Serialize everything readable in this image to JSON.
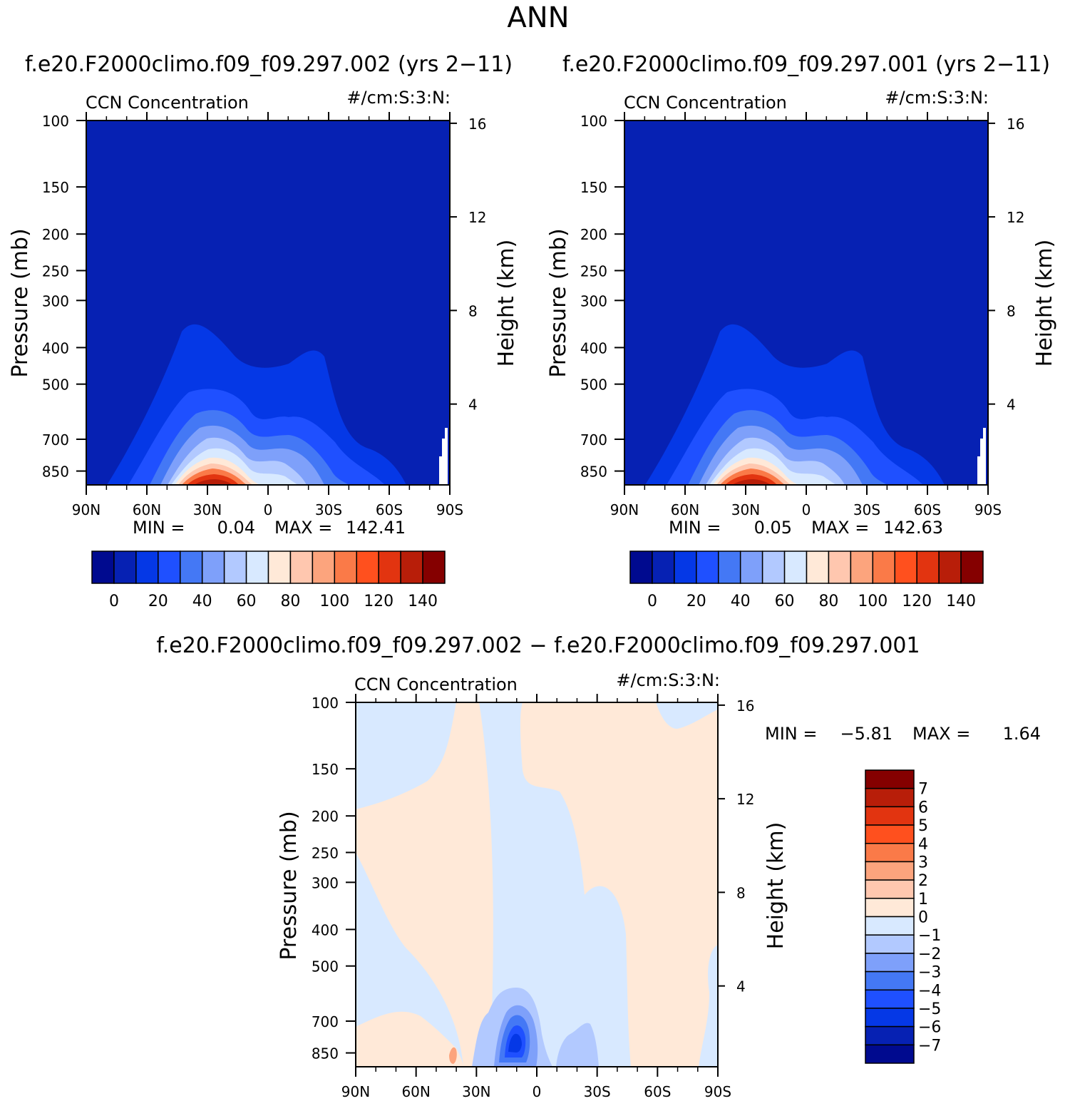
{
  "page": {
    "title": "ANN",
    "diff_title": "f.e20.F2000climo.f09_f09.297.002 − f.e20.F2000climo.f09_f09.297.001"
  },
  "chart_data": [
    {
      "type": "contour",
      "title": "f.e20.F2000climo.f09_f09.297.002 (yrs 2−11)",
      "left_label": "CCN Concentration",
      "right_label": "#/cm:S:3:N:",
      "ylabel": "Pressure (mb)",
      "ylabel_right": "Height (km)",
      "x_ticks": [
        "90N",
        "60N",
        "30N",
        "0",
        "30S",
        "60S",
        "90S"
      ],
      "y_ticks": [
        100,
        150,
        200,
        250,
        300,
        400,
        500,
        700,
        850
      ],
      "y_right_ticks": [
        16,
        12,
        8,
        4
      ],
      "min_label": "MIN =",
      "min_value": "0.04",
      "max_label": "MAX =",
      "max_value": "142.41",
      "ylim": [
        100,
        925
      ],
      "colorbar_ticks": [
        "0",
        "20",
        "40",
        "60",
        "80",
        "100",
        "120",
        "140"
      ],
      "colors": [
        "#000a8f",
        "#0621b3",
        "#0538e6",
        "#1f50ff",
        "#4478f5",
        "#7ea0fa",
        "#b2c9ff",
        "#d8e9ff",
        "#ffe9d8",
        "#ffc7af",
        "#fca47d",
        "#fa7a48",
        "#ff501e",
        "#e23410",
        "#b81e09",
        "#850000"
      ]
    },
    {
      "type": "contour",
      "title": "f.e20.F2000climo.f09_f09.297.001 (yrs 2−11)",
      "left_label": "CCN Concentration",
      "right_label": "#/cm:S:3:N:",
      "ylabel": "Pressure (mb)",
      "ylabel_right": "Height (km)",
      "x_ticks": [
        "90N",
        "60N",
        "30N",
        "0",
        "30S",
        "60S",
        "90S"
      ],
      "y_ticks": [
        100,
        150,
        200,
        250,
        300,
        400,
        500,
        700,
        850
      ],
      "y_right_ticks": [
        16,
        12,
        8,
        4
      ],
      "min_label": "MIN =",
      "min_value": "0.05",
      "max_label": "MAX =",
      "max_value": "142.63",
      "ylim": [
        100,
        925
      ],
      "colorbar_ticks": [
        "0",
        "20",
        "40",
        "60",
        "80",
        "100",
        "120",
        "140"
      ]
    },
    {
      "type": "contour",
      "left_label": "CCN Concentration",
      "right_label": "#/cm:S:3:N:",
      "ylabel": "Pressure (mb)",
      "ylabel_right": "Height (km)",
      "x_ticks": [
        "90N",
        "60N",
        "30N",
        "0",
        "30S",
        "60S",
        "90S"
      ],
      "y_ticks": [
        100,
        150,
        200,
        250,
        300,
        400,
        500,
        700,
        850
      ],
      "y_right_ticks": [
        16,
        12,
        8,
        4
      ],
      "min_label": "MIN =",
      "min_value": "−5.81",
      "max_label": "MAX =",
      "max_value": "1.64",
      "ylim": [
        100,
        925
      ],
      "colorbar_ticks": [
        "7",
        "6",
        "5",
        "4",
        "3",
        "2",
        "1",
        "0",
        "−1",
        "−2",
        "−3",
        "−4",
        "−5",
        "−6",
        "−7"
      ],
      "colors": [
        "#850000",
        "#b81e09",
        "#e23410",
        "#ff501e",
        "#fa7a48",
        "#fca47d",
        "#ffc7af",
        "#ffe9d8",
        "#d8e9ff",
        "#b2c9ff",
        "#7ea0fa",
        "#4478f5",
        "#1f50ff",
        "#0538e6",
        "#0621b3",
        "#000a8f"
      ]
    }
  ]
}
